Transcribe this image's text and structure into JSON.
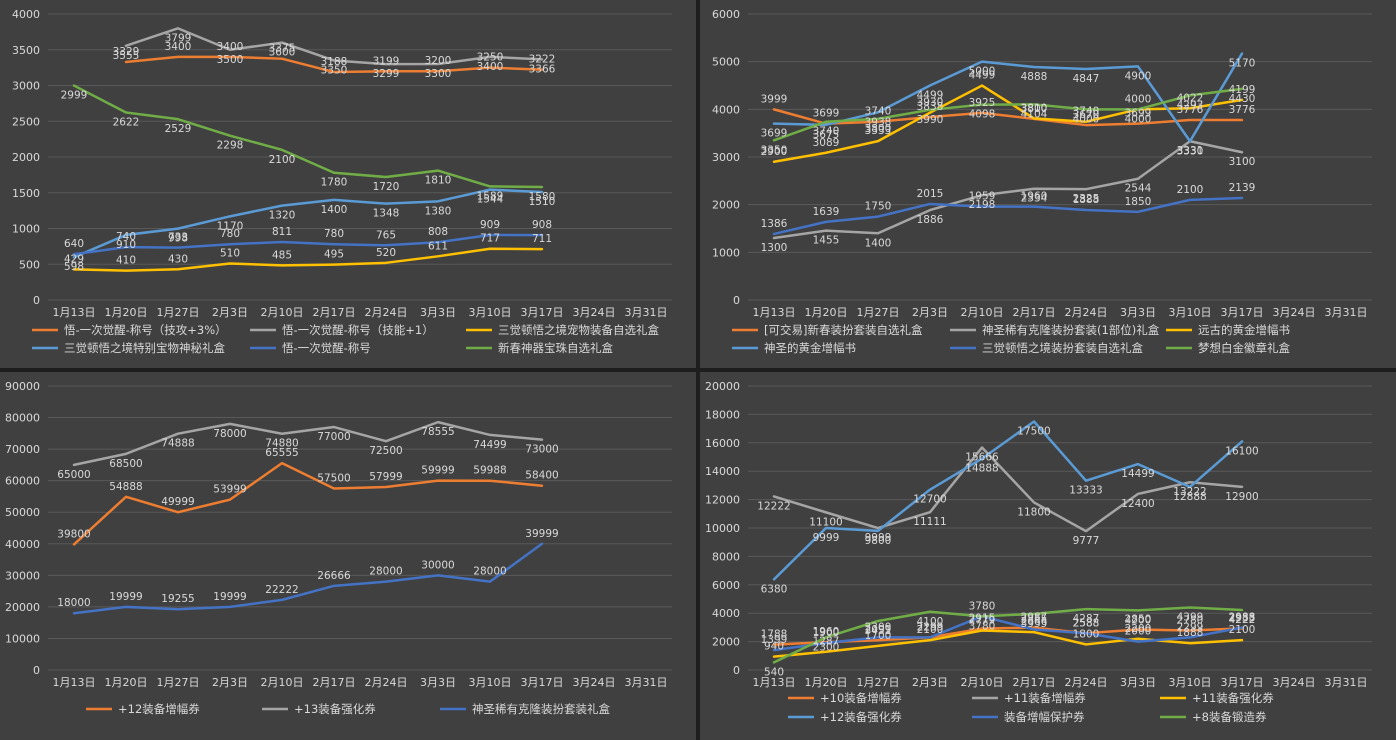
{
  "colors": {
    "background": "#404040",
    "grid": "#595959",
    "text": "#d9d9d9",
    "orange": "#ed7d31",
    "gray": "#a5a5a5",
    "yellow": "#ffc000",
    "lightblue": "#5b9bd5",
    "blue": "#4472c4",
    "green": "#70ad47"
  },
  "chart_data": [
    {
      "type": "line",
      "title": "",
      "categories": [
        "1月13日",
        "1月20日",
        "1月27日",
        "2月3日",
        "2月10日",
        "2月17日",
        "2月24日",
        "3月3日",
        "3月10日",
        "3月17日",
        "3月24日",
        "3月31日"
      ],
      "ylim": [
        0,
        4000
      ],
      "yticks": [
        0,
        500,
        1000,
        1500,
        2000,
        2500,
        3000,
        3500,
        4000
      ],
      "grid": true,
      "legend_position": "bottom",
      "series": [
        {
          "name": "悟-一次觉醒-称号（技攻+3%）",
          "color": "#ed7d31",
          "values": [
            null,
            3329,
            3400,
            3400,
            3375,
            3188,
            3199,
            3200,
            3250,
            3222,
            null,
            null
          ]
        },
        {
          "name": "悟-一次觉醒-称号（技能+1）",
          "color": "#a5a5a5",
          "values": [
            null,
            3555,
            3799,
            3500,
            3600,
            3350,
            3299,
            3300,
            3400,
            3366,
            null,
            null
          ]
        },
        {
          "name": "三觉顿悟之境宠物装备自选礼盒",
          "color": "#ffc000",
          "values": [
            429,
            410,
            430,
            510,
            485,
            495,
            520,
            611,
            717,
            711,
            null,
            null
          ]
        },
        {
          "name": "三觉顿悟之境特别宝物神秘礼盒",
          "color": "#5b9bd5",
          "values": [
            598,
            910,
            998,
            1170,
            1320,
            1400,
            1348,
            1380,
            1544,
            1510,
            null,
            null
          ]
        },
        {
          "name": "悟-一次觉醒-称号",
          "color": "#4472c4",
          "values": [
            640,
            740,
            733,
            780,
            811,
            780,
            765,
            808,
            909,
            908,
            null,
            null
          ]
        },
        {
          "name": "新春神器宝珠自选礼盒",
          "color": "#70ad47",
          "values": [
            2999,
            2622,
            2529,
            2298,
            2100,
            1780,
            1720,
            1810,
            1589,
            1580,
            null,
            null
          ]
        }
      ]
    },
    {
      "type": "line",
      "title": "",
      "categories": [
        "1月13日",
        "1月20日",
        "1月27日",
        "2月3日",
        "2月10日",
        "2月17日",
        "2月24日",
        "3月3日",
        "3月10日",
        "3月17日",
        "3月24日",
        "3月31日"
      ],
      "ylim": [
        0,
        6000
      ],
      "yticks": [
        0,
        1000,
        2000,
        3000,
        4000,
        5000,
        6000
      ],
      "grid": true,
      "legend_position": "bottom",
      "series": [
        {
          "name": "[可交易]新春装扮套装自选礼盒",
          "color": "#ed7d31",
          "values": [
            3999,
            3699,
            3740,
            3838,
            3925,
            3800,
            3670,
            3699,
            3776,
            3776,
            null,
            null
          ]
        },
        {
          "name": "神圣稀有克隆装扮套装(1部位)礼盒",
          "color": "#a5a5a5",
          "values": [
            1300,
            1455,
            1400,
            1886,
            2198,
            2334,
            2325,
            2544,
            3331,
            3100,
            null,
            null
          ]
        },
        {
          "name": "远古的黄金增幅书",
          "color": "#ffc000",
          "values": [
            2900,
            3089,
            3333,
            3930,
            4499,
            3810,
            3740,
            4000,
            4022,
            4199,
            null,
            null
          ]
        },
        {
          "name": "神圣的黄金增幅书",
          "color": "#5b9bd5",
          "values": [
            3699,
            3675,
            3938,
            4499,
            5000,
            4888,
            4847,
            4900,
            3330,
            5170,
            null,
            null
          ]
        },
        {
          "name": "三觉顿悟之境装扮套装自选礼盒",
          "color": "#4472c4",
          "values": [
            1386,
            1639,
            1750,
            2015,
            1959,
            1960,
            1888,
            1850,
            2100,
            2139,
            null,
            null
          ]
        },
        {
          "name": "梦想白金徽章礼盒",
          "color": "#70ad47",
          "values": [
            3350,
            3740,
            3800,
            3990,
            4098,
            4104,
            4000,
            4000,
            4293,
            4430,
            null,
            null
          ]
        }
      ]
    },
    {
      "type": "line",
      "title": "",
      "categories": [
        "1月13日",
        "1月20日",
        "1月27日",
        "2月3日",
        "2月10日",
        "2月17日",
        "2月24日",
        "3月3日",
        "3月10日",
        "3月17日",
        "3月24日",
        "3月31日"
      ],
      "ylim": [
        0,
        90000
      ],
      "yticks": [
        0,
        10000,
        20000,
        30000,
        40000,
        50000,
        60000,
        70000,
        80000,
        90000
      ],
      "grid": true,
      "legend_position": "bottom",
      "series": [
        {
          "name": "+12装备增幅券",
          "color": "#ed7d31",
          "values": [
            39800,
            54888,
            49999,
            53999,
            65555,
            57500,
            57999,
            59999,
            59988,
            58400,
            null,
            null
          ]
        },
        {
          "name": "+13装备强化券",
          "color": "#a5a5a5",
          "values": [
            65000,
            68500,
            74888,
            78000,
            74880,
            77000,
            72500,
            78555,
            74499,
            73000,
            null,
            null
          ]
        },
        {
          "name": "神圣稀有克隆装扮套装礼盒",
          "color": "#4472c4",
          "values": [
            18000,
            19999,
            19255,
            19999,
            22222,
            26666,
            28000,
            30000,
            28000,
            39999,
            null,
            null
          ]
        }
      ]
    },
    {
      "type": "line",
      "title": "",
      "categories": [
        "1月13日",
        "1月20日",
        "1月27日",
        "2月3日",
        "2月10日",
        "2月17日",
        "2月24日",
        "3月3日",
        "3月10日",
        "3月17日",
        "3月24日",
        "3月31日"
      ],
      "ylim": [
        0,
        20000
      ],
      "yticks": [
        0,
        2000,
        4000,
        6000,
        8000,
        10000,
        12000,
        14000,
        16000,
        18000,
        20000
      ],
      "grid": true,
      "legend_position": "bottom",
      "series": [
        {
          "name": "+10装备增幅券",
          "color": "#ed7d31",
          "values": [
            1788,
            1960,
            2099,
            2299,
            2915,
            2987,
            2588,
            2850,
            2780,
            2933,
            null,
            null
          ]
        },
        {
          "name": "+11装备增幅券",
          "color": "#a5a5a5",
          "values": [
            12222,
            11100,
            9999,
            11111,
            15666,
            11800,
            9777,
            12400,
            13222,
            12900,
            null,
            null
          ]
        },
        {
          "name": "+11装备强化券",
          "color": "#ffc000",
          "values": [
            940,
            1287,
            1700,
            2100,
            2779,
            2666,
            1800,
            2200,
            1888,
            2100,
            null,
            null
          ]
        },
        {
          "name": "+12装备强化券",
          "color": "#5b9bd5",
          "values": [
            6380,
            9999,
            9800,
            12700,
            14888,
            17500,
            13333,
            14499,
            12888,
            16100,
            null,
            null
          ]
        },
        {
          "name": "装备增幅保护券",
          "color": "#4472c4",
          "values": [
            1399,
            1900,
            2300,
            2299,
            3780,
            2855,
            2588,
            2000,
            2299,
            2988,
            null,
            null
          ]
        },
        {
          "name": "+8装备锻造券",
          "color": "#70ad47",
          "values": [
            540,
            2300,
            3451,
            4100,
            3780,
            3955,
            4287,
            4200,
            4399,
            4222,
            null,
            null
          ]
        }
      ]
    }
  ]
}
